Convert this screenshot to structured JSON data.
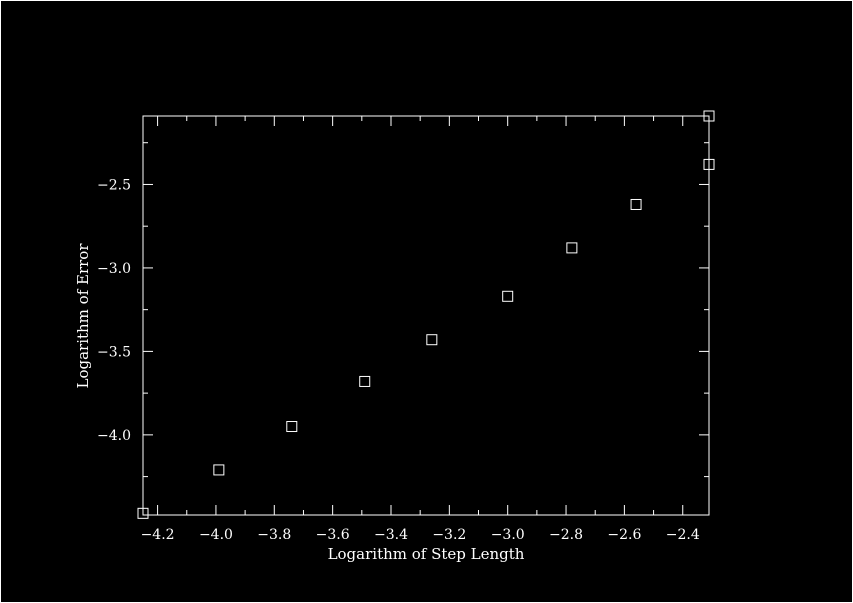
{
  "chart_data": {
    "type": "scatter",
    "xlabel": "Logarithm of Step Length",
    "ylabel": "Logarithm of Error",
    "xlim": [
      -4.25,
      -2.31
    ],
    "ylim": [
      -4.48,
      -2.09
    ],
    "x_ticks": [
      -4.2,
      -4.0,
      -3.8,
      -3.6,
      -3.4,
      -3.2,
      -3.0,
      -2.8,
      -2.6,
      -2.4
    ],
    "x_tick_labels": [
      "−4.2",
      "−4.0",
      "−3.8",
      "−3.6",
      "−3.4",
      "−3.2",
      "−3.0",
      "−2.8",
      "−2.6",
      "−2.4"
    ],
    "y_ticks": [
      -4.0,
      -3.5,
      -3.0,
      -2.5
    ],
    "y_tick_labels": [
      "−4.0",
      "−3.5",
      "−3.0",
      "−2.5"
    ],
    "series": [
      {
        "x": [
          -4.25,
          -3.99,
          -3.74,
          -3.49,
          -3.26,
          -3.0,
          -2.78,
          -2.56,
          -2.31,
          -2.31
        ],
        "y": [
          -4.47,
          -4.21,
          -3.95,
          -3.68,
          -3.43,
          -3.17,
          -2.88,
          -2.62,
          -2.38,
          -2.09
        ]
      }
    ],
    "marker": "square",
    "grid": false,
    "colors": {
      "background": "#000000",
      "foreground": "#ffffff"
    }
  }
}
